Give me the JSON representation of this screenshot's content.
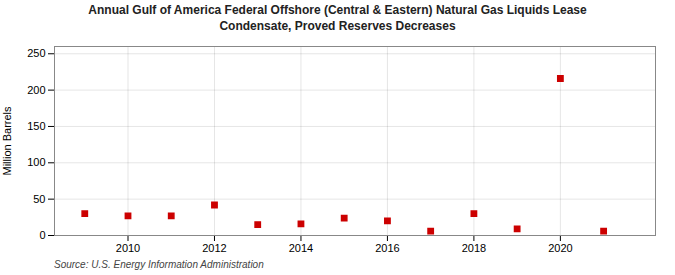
{
  "chart_data": {
    "type": "scatter",
    "title": "Annual Gulf of America Federal Offshore (Central & Eastern) Natural Gas Liquids Lease\nCondensate, Proved Reserves Decreases",
    "ylabel": "Million Barrels",
    "caption": "Source: U.S. Energy Information Administration",
    "x": [
      2009,
      2010,
      2011,
      2012,
      2013,
      2014,
      2015,
      2016,
      2017,
      2018,
      2019,
      2020,
      2021
    ],
    "values": [
      30,
      27,
      27,
      42,
      15,
      16,
      24,
      20,
      6,
      30,
      9,
      216,
      6
    ],
    "color": "#cc0000",
    "marker": "square",
    "xlim": [
      2008.3,
      2022.2
    ],
    "ylim": [
      0,
      260
    ],
    "xticks": [
      2010,
      2012,
      2014,
      2016,
      2018,
      2020
    ],
    "yticks": [
      0,
      50,
      100,
      150,
      200,
      250
    ],
    "grid": true
  }
}
